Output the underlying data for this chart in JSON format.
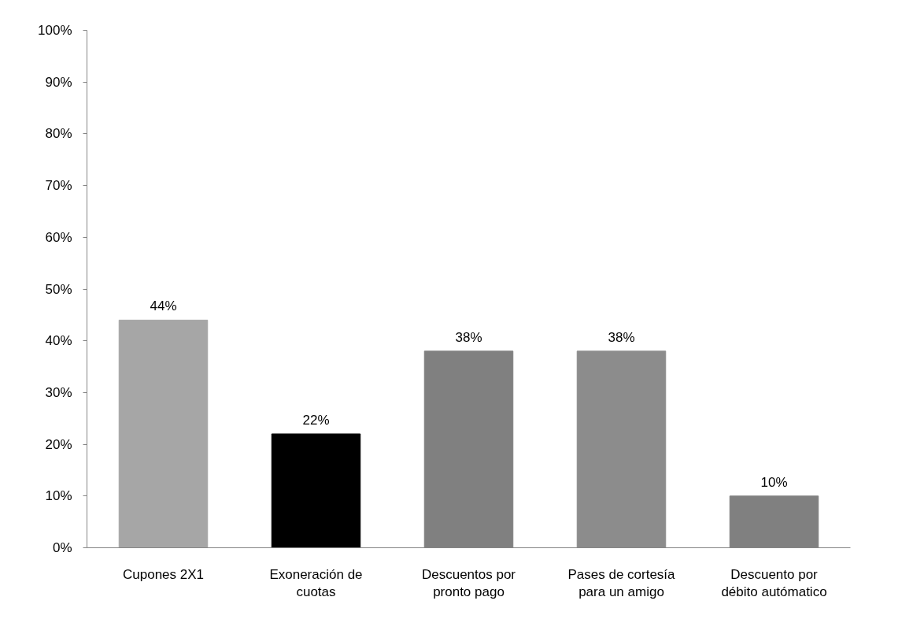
{
  "chart_data": {
    "type": "bar",
    "categories": [
      "Cupones 2X1",
      "Exoneración de cuotas",
      "Descuentos por pronto pago",
      "Pases de cortesía para un amigo",
      "Descuento por débito autómatico"
    ],
    "values": [
      44,
      22,
      38,
      38,
      10
    ],
    "colors": [
      "#a6a6a6",
      "#000000",
      "#808080",
      "#8c8c8c",
      "#808080"
    ],
    "value_labels": [
      "44%",
      "22%",
      "38%",
      "38%",
      "10%"
    ],
    "ylim": [
      0,
      100
    ],
    "yticks": [
      {
        "value": 0,
        "label": "0%"
      },
      {
        "value": 10,
        "label": "10%"
      },
      {
        "value": 20,
        "label": "20%"
      },
      {
        "value": 30,
        "label": "30%"
      },
      {
        "value": 40,
        "label": "40%"
      },
      {
        "value": 50,
        "label": "50%"
      },
      {
        "value": 60,
        "label": "60%"
      },
      {
        "value": 70,
        "label": "70%"
      },
      {
        "value": 80,
        "label": "80%"
      },
      {
        "value": 90,
        "label": "90%"
      },
      {
        "value": 100,
        "label": "100%"
      }
    ],
    "grid": false
  }
}
